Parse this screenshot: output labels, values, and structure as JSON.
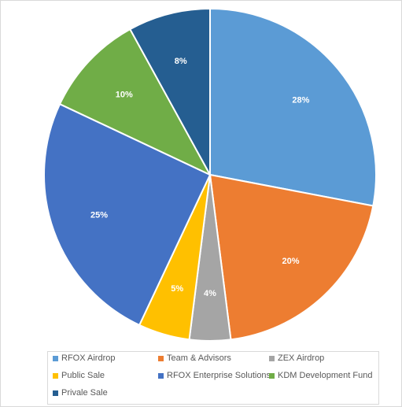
{
  "chart_data": {
    "type": "pie",
    "title": "",
    "slices": [
      {
        "label": "RFOX Airdrop",
        "value": 28,
        "value_label": "28%",
        "color": "#5b9bd5"
      },
      {
        "label": "Team & Advisors",
        "value": 20,
        "value_label": "20%",
        "color": "#ed7d31"
      },
      {
        "label": "ZEX Airdrop",
        "value": 4,
        "value_label": "4%",
        "color": "#a5a5a5"
      },
      {
        "label": "Public Sale",
        "value": 5,
        "value_label": "5%",
        "color": "#ffc000"
      },
      {
        "label": "RFOX Enterprise Solutions",
        "value": 25,
        "value_label": "25%",
        "color": "#4472c4"
      },
      {
        "label": "KDM Development Fund",
        "value": 10,
        "value_label": "10%",
        "color": "#70ad47"
      },
      {
        "label": "Privale Sale",
        "value": 8,
        "value_label": "8%",
        "color": "#255e91"
      }
    ],
    "legend_position": "bottom"
  }
}
